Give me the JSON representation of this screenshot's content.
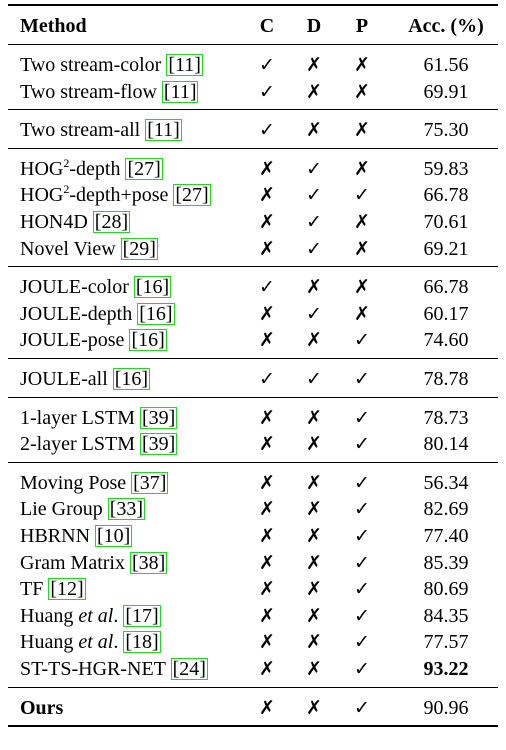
{
  "header": {
    "method": "Method",
    "c": "C",
    "d": "D",
    "p": "P",
    "acc": "Acc. (%)"
  },
  "marks": {
    "yes": "✓",
    "no": "✗"
  },
  "rows": [
    {
      "group": 0,
      "name": "Two stream-color ",
      "ref": "11",
      "c": "✓",
      "d": "✗",
      "p": "✗",
      "acc": "61.56"
    },
    {
      "group": 0,
      "name": "Two stream-flow ",
      "ref": "11",
      "c": "✓",
      "d": "✗",
      "p": "✗",
      "acc": "69.91"
    },
    {
      "group": 1,
      "name": "Two stream-all ",
      "ref": "11",
      "c": "✓",
      "d": "✗",
      "p": "✗",
      "acc": "75.30"
    },
    {
      "group": 2,
      "name": "HOG",
      "sup": "2",
      "name2": "-depth ",
      "ref": "27",
      "c": "✗",
      "d": "✓",
      "p": "✗",
      "acc": "59.83"
    },
    {
      "group": 2,
      "name": "HOG",
      "sup": "2",
      "name2": "-depth+pose ",
      "ref": "27",
      "c": "✗",
      "d": "✓",
      "p": "✓",
      "acc": "66.78"
    },
    {
      "group": 2,
      "name": "HON4D ",
      "ref": "28",
      "c": "✗",
      "d": "✓",
      "p": "✗",
      "acc": "70.61"
    },
    {
      "group": 2,
      "name": "Novel View ",
      "ref": "29",
      "c": "✗",
      "d": "✓",
      "p": "✗",
      "acc": "69.21"
    },
    {
      "group": 3,
      "name": "JOULE-color ",
      "ref": "16",
      "c": "✓",
      "d": "✗",
      "p": "✗",
      "acc": "66.78"
    },
    {
      "group": 3,
      "name": "JOULE-depth ",
      "ref": "16",
      "c": "✗",
      "d": "✓",
      "p": "✗",
      "acc": "60.17"
    },
    {
      "group": 3,
      "name": "JOULE-pose ",
      "ref": "16",
      "c": "✗",
      "d": "✗",
      "p": "✓",
      "acc": "74.60"
    },
    {
      "group": 4,
      "name": "JOULE-all ",
      "ref": "16",
      "c": "✓",
      "d": "✓",
      "p": "✓",
      "acc": "78.78"
    },
    {
      "group": 5,
      "name": "1-layer LSTM ",
      "ref": "39",
      "c": "✗",
      "d": "✗",
      "p": "✓",
      "acc": "78.73"
    },
    {
      "group": 5,
      "name": "2-layer LSTM ",
      "ref": "39",
      "c": "✗",
      "d": "✗",
      "p": "✓",
      "acc": "80.14"
    },
    {
      "group": 6,
      "name": "Moving Pose ",
      "ref": "37",
      "c": "✗",
      "d": "✗",
      "p": "✓",
      "acc": "56.34"
    },
    {
      "group": 6,
      "name": "Lie Group ",
      "ref": "33",
      "c": "✗",
      "d": "✗",
      "p": "✓",
      "acc": "82.69"
    },
    {
      "group": 6,
      "name": "HBRNN ",
      "ref": "10",
      "c": "✗",
      "d": "✗",
      "p": "✓",
      "acc": "77.40"
    },
    {
      "group": 6,
      "name": "Gram Matrix ",
      "ref": "38",
      "c": "✗",
      "d": "✗",
      "p": "✓",
      "acc": "85.39"
    },
    {
      "group": 6,
      "name": "TF ",
      "ref": "12",
      "c": "✗",
      "d": "✗",
      "p": "✓",
      "acc": "80.69"
    },
    {
      "group": 6,
      "name": "Huang ",
      "em": "et al",
      "name2": ". ",
      "ref": "17",
      "c": "✗",
      "d": "✗",
      "p": "✓",
      "acc": "84.35"
    },
    {
      "group": 6,
      "name": "Huang ",
      "em": "et al",
      "name2": ". ",
      "ref": "18",
      "c": "✗",
      "d": "✗",
      "p": "✓",
      "acc": "77.57"
    },
    {
      "group": 6,
      "name": "ST-TS-HGR-NET ",
      "ref": "24",
      "c": "✗",
      "d": "✗",
      "p": "✓",
      "acc": "93.22",
      "acc_bold": true
    },
    {
      "group": 7,
      "name": "Ours",
      "bold": true,
      "c": "✗",
      "d": "✗",
      "p": "✓",
      "acc": "90.96"
    }
  ]
}
